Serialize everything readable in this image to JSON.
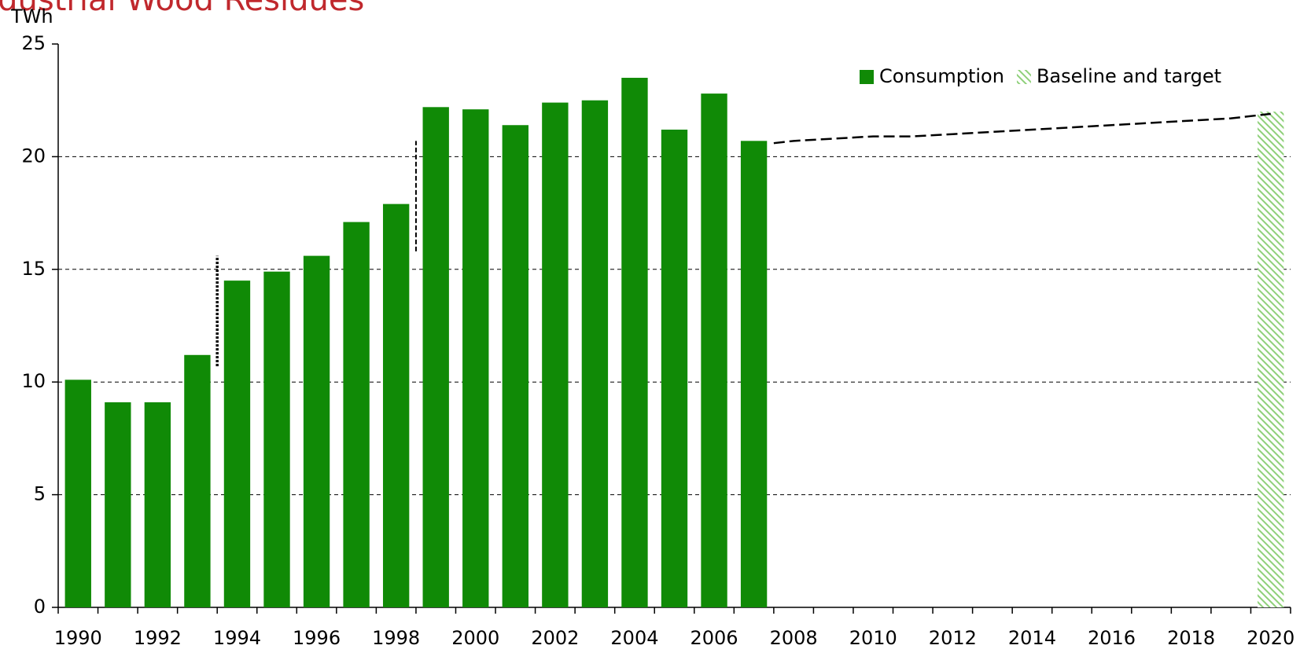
{
  "chart_data": {
    "type": "bar",
    "title": "Industrial Wood Residues",
    "y_label": "TWh",
    "categories": [
      "1990",
      null,
      "1992",
      null,
      "1994",
      null,
      "1996",
      null,
      "1998",
      null,
      "2000",
      null,
      "2002",
      null,
      "2004",
      null,
      "2006",
      null,
      "2008",
      null,
      "2010",
      null,
      "2012",
      null,
      "2014",
      null,
      "2016",
      null,
      "2018",
      null,
      "2020"
    ],
    "series": [
      {
        "name": "Consumption",
        "color": "#108a06",
        "values": [
          10.1,
          9.1,
          9.1,
          11.2,
          14.5,
          14.9,
          15.6,
          17.1,
          17.9,
          22.2,
          22.1,
          21.4,
          22.4,
          22.5,
          23.5,
          21.2,
          22.8,
          20.7,
          null,
          null,
          null,
          null,
          null,
          null,
          null,
          null,
          null,
          null,
          null,
          null,
          null
        ]
      },
      {
        "name": "Baseline and target",
        "color": "#8fd07a",
        "hatch": true,
        "values": [
          null,
          null,
          null,
          null,
          null,
          null,
          null,
          null,
          null,
          null,
          null,
          null,
          null,
          null,
          null,
          null,
          null,
          null,
          null,
          null,
          null,
          null,
          null,
          null,
          null,
          null,
          null,
          null,
          null,
          null,
          22.0
        ]
      }
    ],
    "trajectory": {
      "color": "#000000",
      "values": [
        null,
        null,
        null,
        null,
        null,
        null,
        null,
        null,
        null,
        null,
        null,
        null,
        null,
        null,
        null,
        null,
        null,
        20.6,
        20.7,
        20.8,
        20.9,
        20.9,
        21.0,
        21.1,
        21.2,
        21.3,
        21.4,
        21.5,
        21.6,
        21.7,
        21.9
      ]
    },
    "breaks": [
      {
        "after": 3,
        "values": [
          10.7,
          15.6
        ]
      },
      {
        "after": 8,
        "values": [
          15.8,
          20.7
        ]
      }
    ],
    "ylim": [
      0,
      25
    ],
    "yticks": [
      0,
      5,
      10,
      15,
      20,
      25
    ],
    "grid": true,
    "legend": "top-right"
  }
}
